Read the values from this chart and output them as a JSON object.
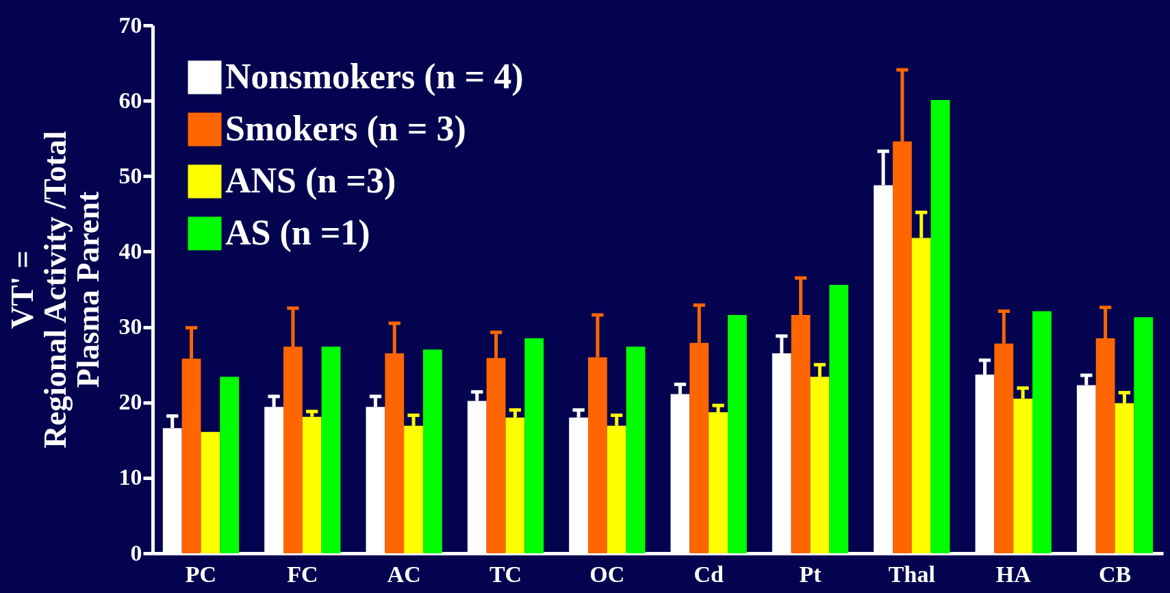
{
  "chart_data": {
    "type": "bar",
    "ylabel": "VT' =\nRegional Activity /Total\nPlasma Parent",
    "categories": [
      "PC",
      "FC",
      "AC",
      "TC",
      "OC",
      "Cd",
      "Pt",
      "Thal",
      "HA",
      "CB"
    ],
    "series": [
      {
        "name": "Nonsmokers (n = 4)",
        "color": "#ffffff",
        "values": [
          16.6,
          19.4,
          19.4,
          20.2,
          18.0,
          21.1,
          26.5,
          48.8,
          23.7,
          22.3
        ],
        "errors": [
          [
            16.6,
            18.2
          ],
          [
            19.4,
            20.8
          ],
          [
            19.4,
            20.8
          ],
          [
            20.2,
            21.4
          ],
          [
            18.0,
            19.0
          ],
          [
            21.1,
            22.4
          ],
          [
            26.5,
            28.8
          ],
          [
            48.8,
            53.3
          ],
          [
            23.7,
            25.6
          ],
          [
            22.3,
            23.6
          ]
        ]
      },
      {
        "name": "Smokers (n = 3)",
        "color": "#ff6600",
        "values": [
          25.8,
          27.4,
          26.5,
          25.9,
          26.0,
          27.9,
          31.6,
          54.6,
          27.8,
          28.5
        ],
        "errors": [
          [
            25.8,
            29.9
          ],
          [
            27.4,
            32.5
          ],
          [
            26.5,
            30.5
          ],
          [
            25.9,
            29.3
          ],
          [
            26.0,
            31.6
          ],
          [
            27.9,
            32.9
          ],
          [
            31.6,
            36.5
          ],
          [
            54.6,
            64.1
          ],
          [
            27.8,
            32.1
          ],
          [
            28.5,
            32.6
          ]
        ]
      },
      {
        "name": "ANS (n =3)",
        "color": "#ffff00",
        "values": [
          16.1,
          18.1,
          16.9,
          18.0,
          16.9,
          18.7,
          23.4,
          41.8,
          20.5,
          19.9
        ],
        "errors": [
          null,
          [
            18.1,
            18.8
          ],
          [
            16.9,
            18.3
          ],
          [
            18.0,
            19.0
          ],
          [
            16.9,
            18.3
          ],
          [
            18.7,
            19.6
          ],
          [
            23.4,
            25.0
          ],
          [
            41.8,
            45.2
          ],
          [
            20.5,
            21.9
          ],
          [
            19.9,
            21.3
          ]
        ]
      },
      {
        "name": "AS (n =1)",
        "color": "#00ff00",
        "values": [
          23.4,
          27.4,
          27.0,
          28.5,
          27.4,
          31.6,
          35.6,
          60.1,
          32.1,
          31.3
        ]
      }
    ],
    "ylim": [
      0,
      70
    ],
    "yticks": [
      0,
      10,
      20,
      30,
      40,
      50,
      60,
      70
    ],
    "legend": "top left",
    "grid": false
  }
}
